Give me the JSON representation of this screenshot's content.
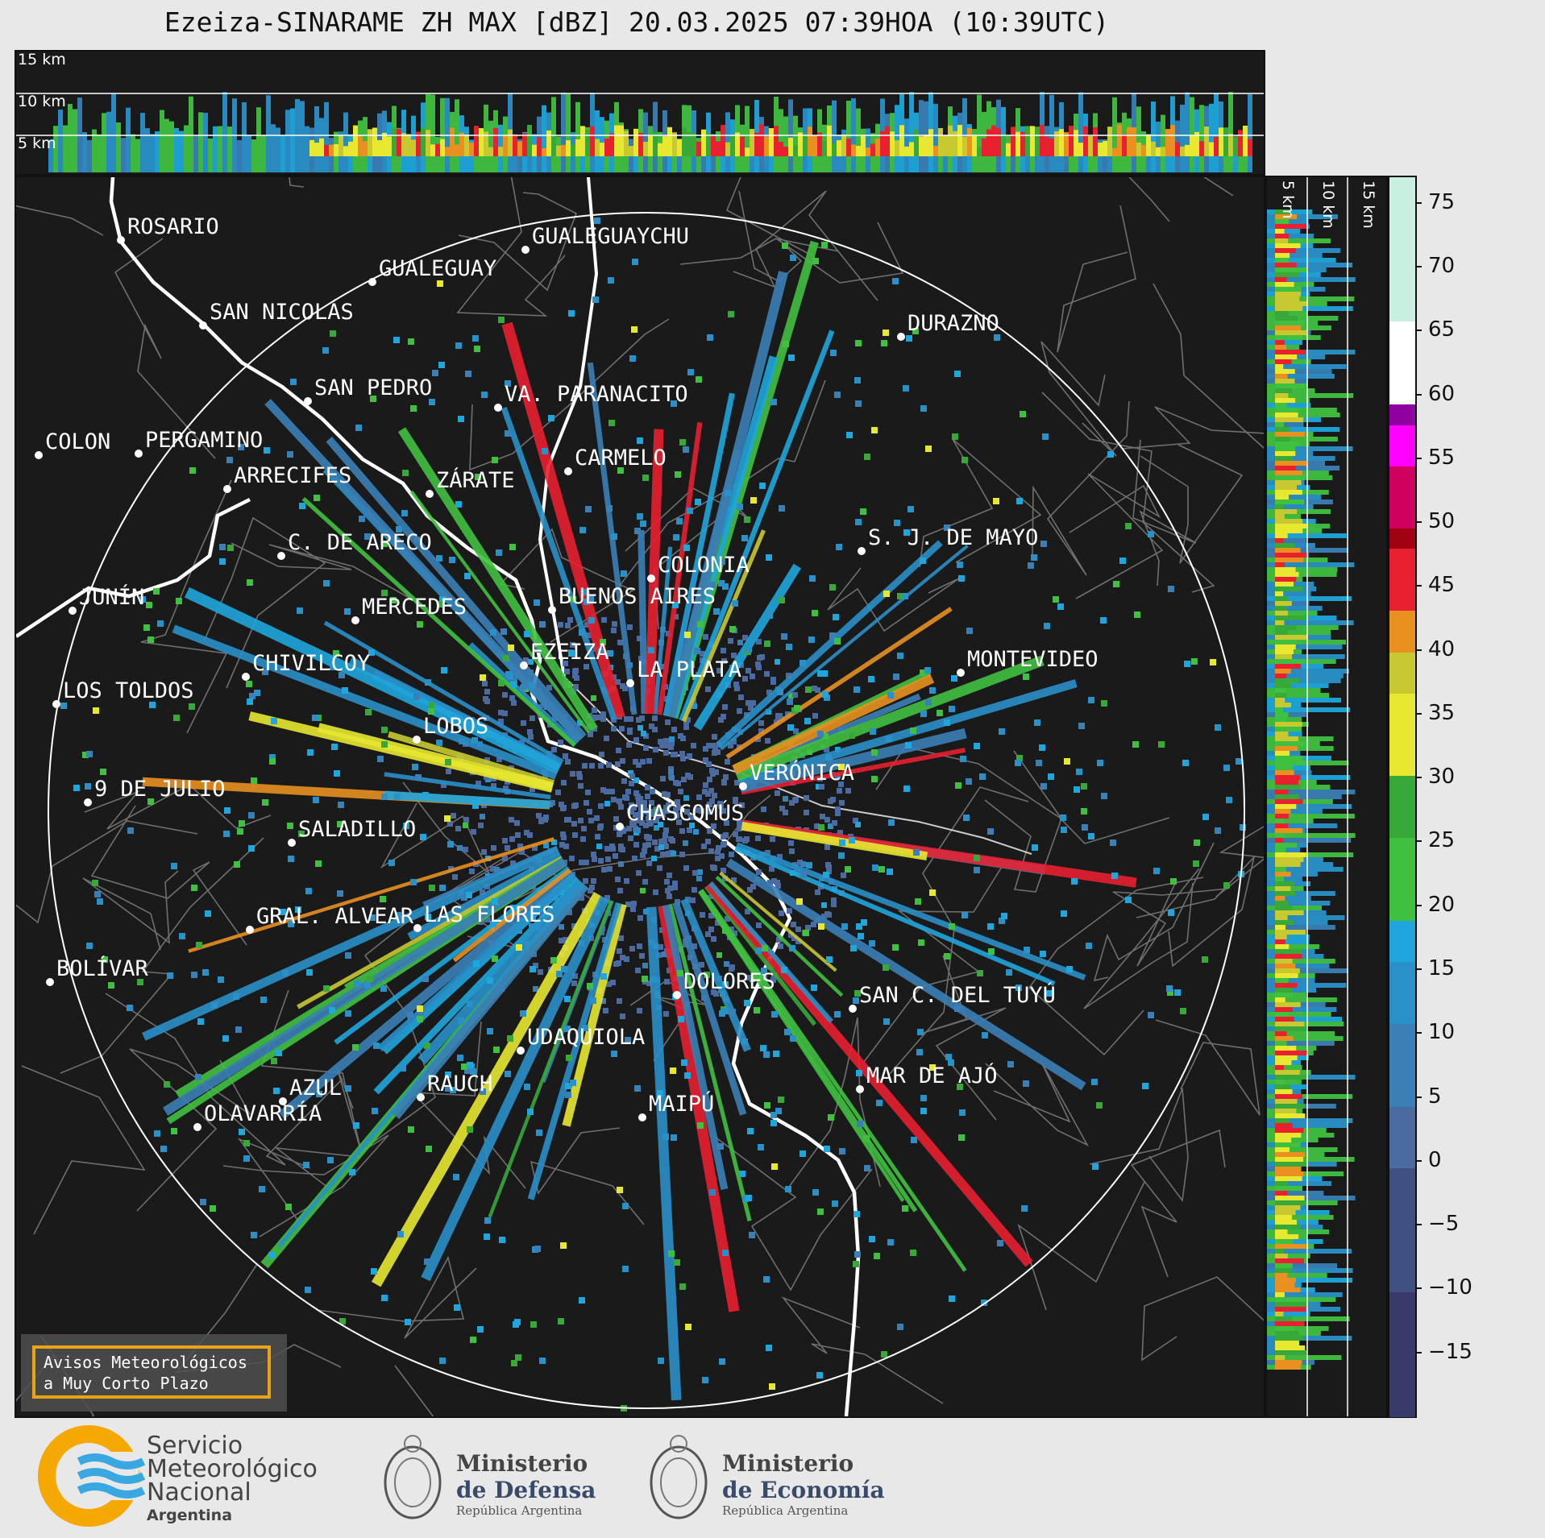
{
  "title": "Ezeiza-SINARAME ZH MAX [dBZ] 20.03.2025 07:39HOA (10:39UTC)",
  "radar_site": "EZEIZA",
  "top_panel": {
    "height_labels": [
      "15 km",
      "10 km",
      "5 km"
    ]
  },
  "right_panel": {
    "height_labels": [
      "5 km",
      "10 km",
      "15 km"
    ]
  },
  "colorbar": {
    "unit": "dBZ",
    "ticks": [
      "75",
      "70",
      "65",
      "60",
      "55",
      "50",
      "45",
      "40",
      "35",
      "30",
      "25",
      "20",
      "15",
      "10",
      "5",
      "0",
      "−5",
      "−10",
      "−15"
    ],
    "range": [
      -20,
      77
    ],
    "stops": [
      {
        "dbz": -20,
        "color": "#3a3a6a"
      },
      {
        "dbz": -10,
        "color": "#405080"
      },
      {
        "dbz": 0,
        "color": "#4a6aa0"
      },
      {
        "dbz": 5,
        "color": "#3a7fb5"
      },
      {
        "dbz": 10,
        "color": "#2a90c8"
      },
      {
        "dbz": 15,
        "color": "#1fa6dc"
      },
      {
        "dbz": 18,
        "color": "#40c040"
      },
      {
        "dbz": 25,
        "color": "#38a838"
      },
      {
        "dbz": 30,
        "color": "#1e6a1e"
      },
      {
        "dbz": 30,
        "color": "#e8e830"
      },
      {
        "dbz": 36,
        "color": "#c8c830"
      },
      {
        "dbz": 40,
        "color": "#e89020"
      },
      {
        "dbz": 43,
        "color": "#e82030"
      },
      {
        "dbz": 48,
        "color": "#a00010"
      },
      {
        "dbz": 50,
        "color": "#d00060"
      },
      {
        "dbz": 55,
        "color": "#ff00ff"
      },
      {
        "dbz": 58,
        "color": "#9000a0"
      },
      {
        "dbz": 59,
        "color": "#ffffff"
      },
      {
        "dbz": 65,
        "color": "#c8f0e0"
      },
      {
        "dbz": 77,
        "color": "#80e0c0"
      }
    ]
  },
  "cities": [
    {
      "name": "ROSARIO"
    },
    {
      "name": "GUALEGUAYCHU"
    },
    {
      "name": "GUALEGUAY"
    },
    {
      "name": "SAN NICOLÁS"
    },
    {
      "name": "DURAZNO"
    },
    {
      "name": "SAN PEDRO"
    },
    {
      "name": "VA. PARANACITO"
    },
    {
      "name": "COLON"
    },
    {
      "name": "PERGAMINO"
    },
    {
      "name": "CARMELO"
    },
    {
      "name": "ARRECIFES"
    },
    {
      "name": "ZÁRATE"
    },
    {
      "name": "S. J. DE MAYO"
    },
    {
      "name": "C. DE ARECO"
    },
    {
      "name": "COLONIA"
    },
    {
      "name": "JUNÍN"
    },
    {
      "name": "BUENOS AIRES"
    },
    {
      "name": "MERCEDES"
    },
    {
      "name": "EZEIZA"
    },
    {
      "name": "MONTEVIDEO"
    },
    {
      "name": "CHIVILCOY"
    },
    {
      "name": "LA PLATA"
    },
    {
      "name": "LOS TOLDOS"
    },
    {
      "name": "LOBOS"
    },
    {
      "name": "VERÓNICA"
    },
    {
      "name": "9 DE JULIO"
    },
    {
      "name": "CHASCOMÚS"
    },
    {
      "name": "SALADILLO"
    },
    {
      "name": "GRAL. ALVEAR"
    },
    {
      "name": "LAS FLORES"
    },
    {
      "name": "BOLÍVAR"
    },
    {
      "name": "DOLORES"
    },
    {
      "name": "SAN C. DEL TUYÚ"
    },
    {
      "name": "UDAQUIOLA"
    },
    {
      "name": "MAR DE AJÓ"
    },
    {
      "name": "AZUL"
    },
    {
      "name": "RAUCH"
    },
    {
      "name": "OLAVARRÍA"
    },
    {
      "name": "MAIPÚ"
    }
  ],
  "warning": {
    "line1": "Avisos Meteorológicos",
    "line2": "a Muy Corto Plazo"
  },
  "footer": {
    "smn": [
      "Servicio",
      "Meteorológico",
      "Nacional",
      "Argentina"
    ],
    "defensa": [
      "Ministerio",
      "de Defensa",
      "República Argentina"
    ],
    "economia": [
      "Ministerio",
      "de Economía",
      "República Argentina"
    ]
  }
}
